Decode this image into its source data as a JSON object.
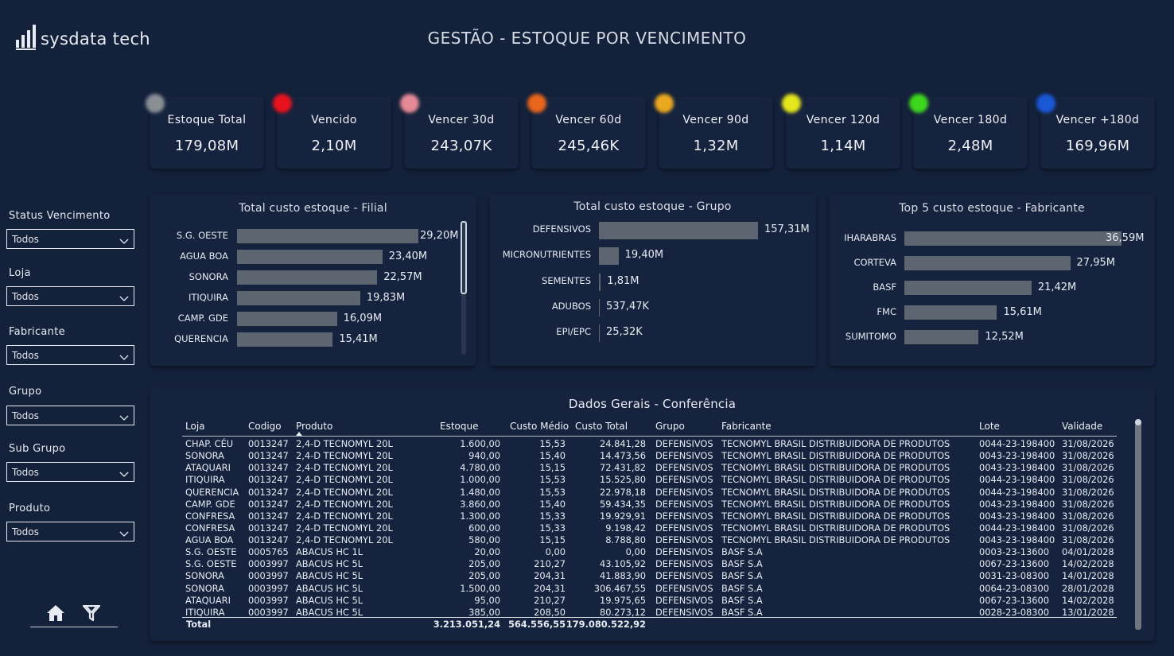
{
  "header": {
    "logo_text": "sysdata tech",
    "title": "GESTÃO - ESTOQUE POR VENCIMENTO"
  },
  "kpis": [
    {
      "label": "Estoque Total",
      "value": "179,08M",
      "color": "#8a8f96"
    },
    {
      "label": "Vencido",
      "value": "2,10M",
      "color": "#e8121e"
    },
    {
      "label": "Vencer 30d",
      "value": "243,07K",
      "color": "#e58a96"
    },
    {
      "label": "Vencer 60d",
      "value": "245,46K",
      "color": "#e8651b"
    },
    {
      "label": "Vencer 90d",
      "value": "1,32M",
      "color": "#eaa81e"
    },
    {
      "label": "Vencer 120d",
      "value": "1,14M",
      "color": "#e6e61c"
    },
    {
      "label": "Vencer 180d",
      "value": "2,48M",
      "color": "#3fd61e"
    },
    {
      "label": "Vencer +180d",
      "value": "169,96M",
      "color": "#1b58d8"
    }
  ],
  "filters": [
    {
      "label": "Status Vencimento",
      "value": "Todos"
    },
    {
      "label": "Loja",
      "value": "Todos"
    },
    {
      "label": "Fabricante",
      "value": "Todos"
    },
    {
      "label": "Grupo",
      "value": "Todos"
    },
    {
      "label": "Sub Grupo",
      "value": "Todos"
    },
    {
      "label": "Produto",
      "value": "Todos"
    }
  ],
  "nav_icons": [
    "home-icon",
    "filter-icon"
  ],
  "chart_data": [
    {
      "type": "bar",
      "title": "Total custo estoque - Filial",
      "categories": [
        "S.G. OESTE",
        "AGUA BOA",
        "SONORA",
        "ITIQUIRA",
        "CAMP. GDE",
        "QUERENCIA"
      ],
      "values": [
        29.2,
        23.4,
        22.57,
        19.83,
        16.09,
        15.41
      ],
      "labels": [
        "29,20M",
        "23,40M",
        "22,57M",
        "19,83M",
        "16,09M",
        "15,41M"
      ],
      "unit": "M",
      "bar_color": "#5d6670"
    },
    {
      "type": "bar",
      "title": "Total custo estoque - Grupo",
      "categories": [
        "DEFENSIVOS",
        "MICRONUTRIENTES",
        "SEMENTES",
        "ADUBOS",
        "EPI/EPC"
      ],
      "values": [
        157.31,
        19.4,
        1.81,
        0.53747,
        0.02532
      ],
      "labels": [
        "157,31M",
        "19,40M",
        "1,81M",
        "537,47K",
        "25,32K"
      ],
      "unit": "M",
      "bar_color": "#5d6670"
    },
    {
      "type": "bar",
      "title": "Top 5 custo estoque - Fabricante",
      "categories": [
        "IHARABRAS",
        "CORTEVA",
        "BASF",
        "FMC",
        "SUMITOMO"
      ],
      "values": [
        36.59,
        27.95,
        21.42,
        15.61,
        12.52
      ],
      "labels": [
        "36,59M",
        "27,95M",
        "21,42M",
        "15,61M",
        "12,52M"
      ],
      "unit": "M",
      "bar_color": "#5d6670"
    }
  ],
  "table": {
    "title": "Dados Gerais - Conferência",
    "columns": [
      "Loja",
      "Codigo",
      "Produto",
      "Estoque",
      "Custo Médio",
      "Custo Total",
      "Grupo",
      "Fabricante",
      "Lote",
      "Validade"
    ],
    "rows": [
      [
        "CHAP. CÉU",
        "0013247",
        "2,4-D TECNOMYL 20L",
        "1.600,00",
        "15,53",
        "24.841,28",
        "DEFENSIVOS",
        "TECNOMYL BRASIL DISTRIBUIDORA DE PRODUTOS",
        "0044-23-198400",
        "31/08/2026"
      ],
      [
        "SONORA",
        "0013247",
        "2,4-D TECNOMYL 20L",
        "940,00",
        "15,40",
        "14.473,56",
        "DEFENSIVOS",
        "TECNOMYL BRASIL DISTRIBUIDORA DE PRODUTOS",
        "0043-23-198400",
        "31/08/2026"
      ],
      [
        "ATAQUARI",
        "0013247",
        "2,4-D TECNOMYL 20L",
        "4.780,00",
        "15,15",
        "72.431,82",
        "DEFENSIVOS",
        "TECNOMYL BRASIL DISTRIBUIDORA DE PRODUTOS",
        "0043-23-198400",
        "31/08/2026"
      ],
      [
        "ITIQUIRA",
        "0013247",
        "2,4-D TECNOMYL 20L",
        "1.000,00",
        "15,53",
        "15.525,80",
        "DEFENSIVOS",
        "TECNOMYL BRASIL DISTRIBUIDORA DE PRODUTOS",
        "0044-23-198400",
        "31/08/2026"
      ],
      [
        "QUERENCIA",
        "0013247",
        "2,4-D TECNOMYL 20L",
        "1.480,00",
        "15,53",
        "22.978,18",
        "DEFENSIVOS",
        "TECNOMYL BRASIL DISTRIBUIDORA DE PRODUTOS",
        "0044-23-198400",
        "31/08/2026"
      ],
      [
        "CAMP. GDE",
        "0013247",
        "2,4-D TECNOMYL 20L",
        "3.860,00",
        "15,40",
        "59.434,35",
        "DEFENSIVOS",
        "TECNOMYL BRASIL DISTRIBUIDORA DE PRODUTOS",
        "0043-23-198400",
        "31/08/2026"
      ],
      [
        "CONFRESA",
        "0013247",
        "2,4-D TECNOMYL 20L",
        "1.300,00",
        "15,33",
        "19.929,91",
        "DEFENSIVOS",
        "TECNOMYL BRASIL DISTRIBUIDORA DE PRODUTOS",
        "0043-23-198400",
        "31/08/2026"
      ],
      [
        "CONFRESA",
        "0013247",
        "2,4-D TECNOMYL 20L",
        "600,00",
        "15,33",
        "9.198,42",
        "DEFENSIVOS",
        "TECNOMYL BRASIL DISTRIBUIDORA DE PRODUTOS",
        "0044-23-198400",
        "31/08/2026"
      ],
      [
        "AGUA BOA",
        "0013247",
        "2,4-D TECNOMYL 20L",
        "580,00",
        "15,15",
        "8.788,80",
        "DEFENSIVOS",
        "TECNOMYL BRASIL DISTRIBUIDORA DE PRODUTOS",
        "0043-23-198400",
        "31/08/2026"
      ],
      [
        "S.G. OESTE",
        "0005765",
        "ABACUS HC 1L",
        "20,00",
        "0,00",
        "0,00",
        "DEFENSIVOS",
        "BASF S.A",
        "0003-23-13600",
        "04/01/2028"
      ],
      [
        "S.G. OESTE",
        "0003997",
        "ABACUS HC 5L",
        "205,00",
        "210,27",
        "43.105,92",
        "DEFENSIVOS",
        "BASF S.A",
        "0067-23-13600",
        "14/02/2028"
      ],
      [
        "SONORA",
        "0003997",
        "ABACUS HC 5L",
        "205,00",
        "204,31",
        "41.883,90",
        "DEFENSIVOS",
        "BASF S.A",
        "0031-23-08300",
        "14/01/2028"
      ],
      [
        "SONORA",
        "0003997",
        "ABACUS HC 5L",
        "1.500,00",
        "204,31",
        "306.467,55",
        "DEFENSIVOS",
        "BASF S.A",
        "0064-23-08300",
        "28/01/2028"
      ],
      [
        "ATAQUARI",
        "0003997",
        "ABACUS HC 5L",
        "95,00",
        "210,27",
        "19.975,65",
        "DEFENSIVOS",
        "BASF S.A",
        "0067-23-13600",
        "14/02/2028"
      ],
      [
        "ITIQUIRA",
        "0003997",
        "ABACUS HC 5L",
        "385,00",
        "208,50",
        "80.273,12",
        "DEFENSIVOS",
        "BASF S.A",
        "0028-23-08300",
        "13/01/2028"
      ]
    ],
    "total": {
      "label": "Total",
      "estoque": "3.213.051,24",
      "custo_medio": "564.556,55",
      "custo_total": "179.080.522,92"
    }
  }
}
